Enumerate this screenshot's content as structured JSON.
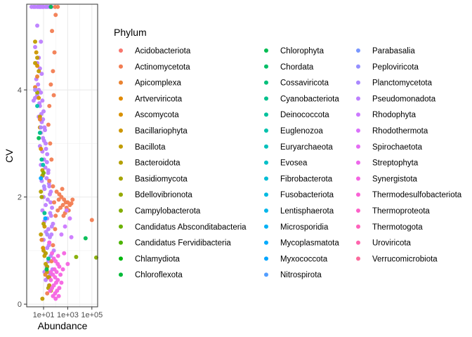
{
  "chart_data": {
    "type": "scatter",
    "xlabel": "Abundance",
    "ylabel": "CV",
    "x_scale": "log10",
    "x_ticks": [
      {
        "value": 10,
        "label": "1e+01"
      },
      {
        "value": 1000,
        "label": "1e+03"
      },
      {
        "value": 100000,
        "label": "1e+05"
      }
    ],
    "y_ticks": [
      {
        "value": 0,
        "label": "0"
      },
      {
        "value": 2,
        "label": "2"
      },
      {
        "value": 4,
        "label": "4"
      }
    ],
    "xlim": [
      0.4,
      300000
    ],
    "ylim": [
      -0.05,
      5.6
    ],
    "grid": true,
    "legend": {
      "title": "Phylum",
      "position": "right",
      "entries": [
        {
          "name": "Acidobacteriota",
          "color": "#F8766D"
        },
        {
          "name": "Actinomycetota",
          "color": "#F27D52"
        },
        {
          "name": "Apicomplexa",
          "color": "#EA8331"
        },
        {
          "name": "Artverviricota",
          "color": "#E18A00"
        },
        {
          "name": "Ascomycota",
          "color": "#D89000"
        },
        {
          "name": "Bacillariophyta",
          "color": "#CD9600"
        },
        {
          "name": "Bacillota",
          "color": "#C19C00"
        },
        {
          "name": "Bacteroidota",
          "color": "#B4A000"
        },
        {
          "name": "Basidiomycota",
          "color": "#A5A400"
        },
        {
          "name": "Bdellovibrionota",
          "color": "#95A900"
        },
        {
          "name": "Campylobacterota",
          "color": "#83AD00"
        },
        {
          "name": "Candidatus Absconditabacteria",
          "color": "#6BB100"
        },
        {
          "name": "Candidatus Fervidibacteria",
          "color": "#4CB400"
        },
        {
          "name": "Chlamydiota",
          "color": "#00B70C"
        },
        {
          "name": "Chloroflexota",
          "color": "#00BA38"
        },
        {
          "name": "Chlorophyta",
          "color": "#00BC52"
        },
        {
          "name": "Chordata",
          "color": "#00BE67"
        },
        {
          "name": "Cossaviricota",
          "color": "#00BF7A"
        },
        {
          "name": "Cyanobacteriota",
          "color": "#00C08C"
        },
        {
          "name": "Deinococcota",
          "color": "#00C19C"
        },
        {
          "name": "Euglenozoa",
          "color": "#00C1AC"
        },
        {
          "name": "Euryarchaeota",
          "color": "#00C0BB"
        },
        {
          "name": "Evosea",
          "color": "#00BFC8"
        },
        {
          "name": "Fibrobacterota",
          "color": "#00BDD5"
        },
        {
          "name": "Fusobacteriota",
          "color": "#00BAE1"
        },
        {
          "name": "Lentisphaerota",
          "color": "#00B6EB"
        },
        {
          "name": "Microsporidia",
          "color": "#00B1F5"
        },
        {
          "name": "Mycoplasmatota",
          "color": "#00ABFD"
        },
        {
          "name": "Myxococcota",
          "color": "#00A5FF"
        },
        {
          "name": "Nitrospirota",
          "color": "#529EFF"
        },
        {
          "name": "Parabasalia",
          "color": "#7997FF"
        },
        {
          "name": "Peploviricota",
          "color": "#948FFF"
        },
        {
          "name": "Planctomycetota",
          "color": "#AA88FF"
        },
        {
          "name": "Pseudomonadota",
          "color": "#BD80FF"
        },
        {
          "name": "Rhodophyta",
          "color": "#CC79FF"
        },
        {
          "name": "Rhodothermota",
          "color": "#DA72FB"
        },
        {
          "name": "Spirochaetota",
          "color": "#E56CF4"
        },
        {
          "name": "Streptophyta",
          "color": "#EE67EB"
        },
        {
          "name": "Synergistota",
          "color": "#F564E2"
        },
        {
          "name": "Thermodesulfobacteriota",
          "color": "#FA62D6"
        },
        {
          "name": "Thermoproteota",
          "color": "#FD61C9"
        },
        {
          "name": "Thermotogota",
          "color": "#FF62BC"
        },
        {
          "name": "Uroviricota",
          "color": "#FF64AD"
        },
        {
          "name": "Verrucomicrobiota",
          "color": "#FC6A9C"
        }
      ]
    },
    "series": [
      {
        "name": "Pseudomonadota",
        "points": [
          [
            1,
            5.55
          ],
          [
            1.5,
            5.55
          ],
          [
            2,
            5.55
          ],
          [
            3,
            5.55
          ],
          [
            4,
            5.55
          ],
          [
            5,
            5.55
          ],
          [
            6,
            5.55
          ],
          [
            8,
            5.55
          ],
          [
            10,
            5.55
          ],
          [
            15,
            5.55
          ],
          [
            20,
            5.55
          ],
          [
            30,
            5.55
          ],
          [
            45,
            5.55
          ],
          [
            3,
            5.2
          ],
          [
            6,
            4.9
          ],
          [
            2,
            4.8
          ],
          [
            4,
            4.6
          ],
          [
            3,
            4.5
          ],
          [
            5,
            4.4
          ],
          [
            7,
            4.3
          ],
          [
            2.5,
            4.2
          ],
          [
            4,
            4.0
          ],
          [
            6,
            3.95
          ],
          [
            3,
            3.9
          ],
          [
            8,
            3.8
          ],
          [
            5,
            3.7
          ],
          [
            10,
            3.6
          ],
          [
            4,
            3.5
          ],
          [
            7,
            3.4
          ],
          [
            12,
            3.3
          ],
          [
            6,
            3.2
          ],
          [
            9,
            3.1
          ],
          [
            15,
            3.0
          ],
          [
            5,
            2.95
          ],
          [
            8,
            2.85
          ],
          [
            20,
            2.8
          ],
          [
            11,
            2.7
          ],
          [
            6,
            2.6
          ],
          [
            14,
            2.55
          ],
          [
            25,
            2.5
          ],
          [
            9,
            2.4
          ],
          [
            18,
            2.35
          ],
          [
            7,
            2.3
          ],
          [
            30,
            2.2
          ],
          [
            12,
            2.15
          ],
          [
            40,
            2.1
          ],
          [
            10,
            2.0
          ],
          [
            22,
            1.95
          ],
          [
            15,
            1.85
          ],
          [
            50,
            1.8
          ],
          [
            8,
            1.75
          ],
          [
            35,
            1.7
          ],
          [
            20,
            1.6
          ],
          [
            12,
            1.55
          ],
          [
            60,
            1.5
          ],
          [
            25,
            1.4
          ],
          [
            16,
            1.35
          ],
          [
            45,
            1.3
          ],
          [
            10,
            1.2
          ],
          [
            30,
            1.15
          ],
          [
            20,
            1.05
          ],
          [
            70,
            1.0
          ],
          [
            14,
            0.95
          ],
          [
            40,
            0.9
          ],
          [
            25,
            0.8
          ],
          [
            18,
            0.7
          ],
          [
            55,
            0.65
          ],
          [
            12,
            0.6
          ],
          [
            35,
            0.55
          ],
          [
            22,
            0.5
          ],
          [
            15,
            0.45
          ],
          [
            28,
            0.35
          ],
          [
            2,
            3.85
          ],
          [
            1.5,
            3.8
          ],
          [
            3.5,
            4.1
          ],
          [
            4.5,
            3.75
          ],
          [
            6.5,
            3.55
          ],
          [
            9,
            3.45
          ],
          [
            13,
            3.25
          ],
          [
            11,
            3.05
          ],
          [
            16,
            2.9
          ],
          [
            19,
            2.65
          ],
          [
            24,
            2.45
          ],
          [
            28,
            2.25
          ],
          [
            33,
            2.05
          ],
          [
            38,
            1.9
          ],
          [
            42,
            1.65
          ],
          [
            48,
            1.45
          ],
          [
            33,
            1.25
          ],
          [
            27,
            1.1
          ]
        ]
      },
      {
        "name": "Actinomycetota",
        "points": [
          [
            90,
            5.55
          ],
          [
            150,
            5.55
          ],
          [
            100,
            5.4
          ],
          [
            50,
            5.1
          ],
          [
            80,
            4.7
          ],
          [
            60,
            4.35
          ],
          [
            40,
            4.1
          ],
          [
            70,
            3.9
          ],
          [
            30,
            3.7
          ],
          [
            25,
            3.35
          ],
          [
            35,
            3.0
          ],
          [
            45,
            2.7
          ],
          [
            30,
            2.3
          ],
          [
            60,
            2.2
          ],
          [
            120,
            2.1
          ],
          [
            200,
            2.05
          ],
          [
            300,
            2.0
          ],
          [
            500,
            1.95
          ],
          [
            700,
            1.9
          ],
          [
            1000,
            1.9
          ],
          [
            1500,
            1.85
          ],
          [
            400,
            1.85
          ],
          [
            250,
            1.8
          ],
          [
            800,
            1.8
          ],
          [
            150,
            1.75
          ],
          [
            600,
            1.7
          ],
          [
            100,
            1.65
          ],
          [
            2000,
            1.88
          ],
          [
            90,
            1.4
          ],
          [
            60,
            1.1
          ],
          [
            45,
            0.8
          ],
          [
            30,
            0.5
          ],
          [
            20,
            0.2
          ],
          [
            100000,
            1.57
          ],
          [
            2500,
            1.95
          ],
          [
            350,
            2.15
          ],
          [
            1200,
            1.75
          ],
          [
            180,
            1.95
          ],
          [
            450,
            1.65
          ],
          [
            75,
            1.9
          ]
        ]
      },
      {
        "name": "Bacillota",
        "points": [
          [
            2,
            4.9
          ],
          [
            3,
            4.6
          ],
          [
            2,
            4.5
          ],
          [
            4,
            4.35
          ],
          [
            5,
            3.5
          ],
          [
            8,
            2.5
          ],
          [
            6,
            1.3
          ],
          [
            12,
            0.9
          ],
          [
            20,
            0.6
          ],
          [
            30,
            0.35
          ],
          [
            8,
            0.1
          ],
          [
            10,
            1.0
          ],
          [
            15,
            0.75
          ],
          [
            25,
            0.5
          ],
          [
            40,
            0.25
          ]
        ]
      },
      {
        "name": "Apicomplexa",
        "points": [
          [
            3,
            4.25
          ],
          [
            2,
            4.05
          ],
          [
            5,
            3.45
          ],
          [
            7,
            1.2
          ],
          [
            14,
            0.55
          ]
        ]
      },
      {
        "name": "Ascomycota",
        "points": [
          [
            4,
            3.85
          ],
          [
            9,
            1.05
          ],
          [
            3,
            4.45
          ],
          [
            6,
            2.9
          ]
        ]
      },
      {
        "name": "Bacillariophyta",
        "points": [
          [
            2.5,
            4.7
          ],
          [
            5,
            3.3
          ],
          [
            12,
            1.45
          ]
        ]
      },
      {
        "name": "Bacteroidota",
        "points": [
          [
            6,
            2.1
          ],
          [
            10,
            1.5
          ],
          [
            15,
            0.95
          ],
          [
            20,
            0.7
          ],
          [
            8,
            2.4
          ],
          [
            25,
            0.3
          ]
        ]
      },
      {
        "name": "Basidiomycota",
        "points": [
          [
            3,
            3.95
          ],
          [
            7,
            2.0
          ]
        ]
      },
      {
        "name": "Chlorophyta",
        "points": [
          [
            40,
            5.55
          ],
          [
            4,
            3.1
          ],
          [
            30000,
            1.23
          ],
          [
            18,
            0.65
          ]
        ]
      },
      {
        "name": "Cyanobacteriota",
        "points": [
          [
            7,
            2.7
          ],
          [
            12,
            1.7
          ],
          [
            25,
            0.85
          ],
          [
            5,
            3.2
          ]
        ]
      },
      {
        "name": "Euglenozoa",
        "points": [
          [
            3,
            3.7
          ],
          [
            9,
            2.6
          ]
        ]
      },
      {
        "name": "Campylobacterota",
        "points": [
          [
            5000,
            0.88
          ],
          [
            300000,
            0.87
          ],
          [
            10,
            2.45
          ]
        ]
      },
      {
        "name": "Planctomycetota",
        "points": [
          [
            2,
            4.0
          ],
          [
            6,
            3.3
          ],
          [
            11,
            2.2
          ],
          [
            20,
            1.3
          ]
        ]
      },
      {
        "name": "Myxococcota",
        "points": [
          [
            6,
            2.35
          ],
          [
            14,
            1.6
          ]
        ]
      },
      {
        "name": "Synergistota",
        "points": [
          [
            30,
            1.15
          ],
          [
            50,
            0.95
          ],
          [
            70,
            0.85
          ],
          [
            100,
            0.8
          ],
          [
            150,
            0.75
          ],
          [
            200,
            0.7
          ],
          [
            80,
            0.65
          ],
          [
            120,
            0.6
          ],
          [
            60,
            0.55
          ],
          [
            90,
            0.5
          ],
          [
            40,
            0.45
          ],
          [
            150,
            0.45
          ],
          [
            110,
            0.4
          ],
          [
            70,
            0.35
          ],
          [
            200,
            0.3
          ],
          [
            50,
            0.3
          ],
          [
            130,
            0.25
          ],
          [
            90,
            0.2
          ],
          [
            60,
            0.15
          ],
          [
            180,
            0.15
          ],
          [
            100,
            0.1
          ],
          [
            40,
            0.6
          ],
          [
            250,
            0.55
          ],
          [
            300,
            0.4
          ],
          [
            35,
            0.25
          ],
          [
            160,
            0.9
          ],
          [
            400,
            0.65
          ],
          [
            500,
            0.95
          ],
          [
            1000,
            0.75
          ]
        ]
      },
      {
        "name": "Rhodophyta",
        "points": [
          [
            800,
            1.75
          ],
          [
            1500,
            1.6
          ],
          [
            600,
            1.45
          ],
          [
            300,
            1.3
          ],
          [
            2000,
            1.25
          ]
        ]
      }
    ]
  }
}
